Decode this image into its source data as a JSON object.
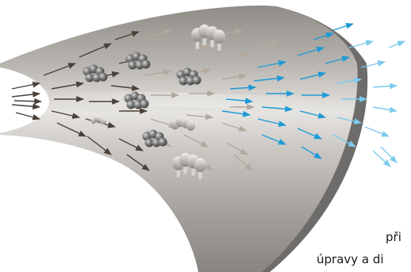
{
  "caption": {
    "line1": "při",
    "line2": "úpravy a di"
  },
  "colors": {
    "background": "#ffffff",
    "cone_light": "#eeeeee",
    "cone_mid": "#b9b6b2",
    "cone_dark": "#8a8682",
    "cone_rim": "#6e6c6a",
    "arrow_dark": "#4a403a",
    "arrow_warm": "#b3a89d",
    "arrow_blue": "#1e9ad6",
    "arrow_light_blue": "#7ccbef",
    "particle": "#6e6e6e"
  },
  "icons": [
    "flow-arrow-icon",
    "particle-cluster-icon",
    "fiber-cluster-icon"
  ]
}
